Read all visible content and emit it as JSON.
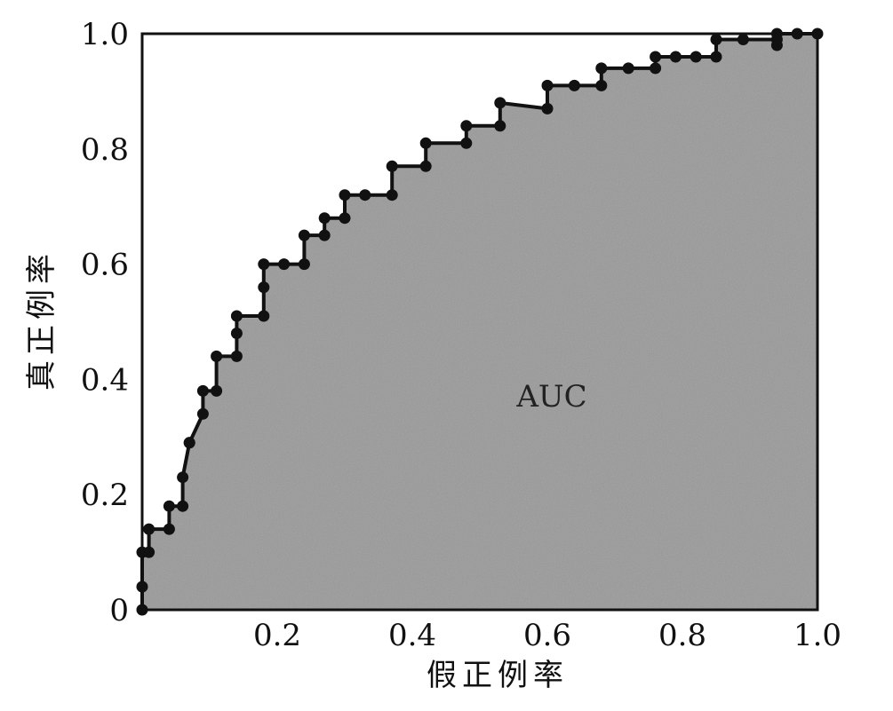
{
  "chart_data": {
    "type": "line",
    "xlabel": "假正例率",
    "ylabel": "真正例率",
    "xlim": [
      0,
      1
    ],
    "ylim": [
      0,
      1
    ],
    "x_ticks": [
      {
        "value": 0.2,
        "label": "0.2"
      },
      {
        "value": 0.4,
        "label": "0.4"
      },
      {
        "value": 0.6,
        "label": "0.6"
      },
      {
        "value": 0.8,
        "label": "0.8"
      },
      {
        "value": 1.0,
        "label": "1.0"
      }
    ],
    "y_ticks": [
      {
        "value": 0,
        "label": "0"
      },
      {
        "value": 0.2,
        "label": "0.2"
      },
      {
        "value": 0.4,
        "label": "0.4"
      },
      {
        "value": 0.6,
        "label": "0.6"
      },
      {
        "value": 0.8,
        "label": "0.8"
      },
      {
        "value": 1.0,
        "label": "1.0"
      }
    ],
    "annotation": "AUC",
    "grid": false,
    "area_fill": true,
    "colors": {
      "curve": "#111111",
      "area": "#9a9a9a",
      "frame": "#111111"
    },
    "series": [
      {
        "x": [
          0,
          0,
          0,
          0.01,
          0.01,
          0.04,
          0.04,
          0.06,
          0.06,
          0.07,
          0.07,
          0.09,
          0.09,
          0.11,
          0.11,
          0.14,
          0.14,
          0.14,
          0.18,
          0.18,
          0.18,
          0.21,
          0.24,
          0.24,
          0.27,
          0.27,
          0.3,
          0.3,
          0.33,
          0.37,
          0.37,
          0.42,
          0.42,
          0.48,
          0.48,
          0.53,
          0.53,
          0.6,
          0.6,
          0.64,
          0.68,
          0.68,
          0.72,
          0.76,
          0.76,
          0.79,
          0.82,
          0.85,
          0.85,
          0.89,
          0.94,
          0.94,
          0.94,
          0.97,
          1.0
        ],
        "y": [
          0,
          0.04,
          0.1,
          0.1,
          0.14,
          0.14,
          0.18,
          0.18,
          0.23,
          0.29,
          0.29,
          0.34,
          0.38,
          0.38,
          0.44,
          0.44,
          0.48,
          0.51,
          0.51,
          0.56,
          0.6,
          0.6,
          0.6,
          0.65,
          0.65,
          0.68,
          0.68,
          0.72,
          0.72,
          0.72,
          0.77,
          0.77,
          0.81,
          0.81,
          0.84,
          0.84,
          0.88,
          0.87,
          0.91,
          0.91,
          0.91,
          0.94,
          0.94,
          0.94,
          0.96,
          0.96,
          0.96,
          0.96,
          0.99,
          0.99,
          0.99,
          0.98,
          1.0,
          1.0,
          1.0
        ]
      }
    ]
  }
}
